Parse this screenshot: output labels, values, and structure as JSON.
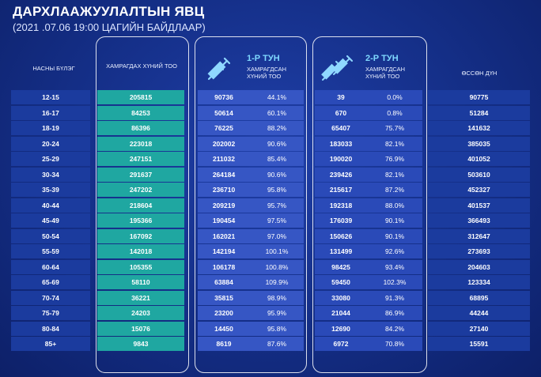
{
  "header": {
    "title": "ДАРХЛААЖУУЛАЛТЫН ЯВЦ",
    "subtitle": "(2021 .07.06   19:00 ЦАГИЙН БАЙДЛААР)"
  },
  "columns": {
    "age": "НАСНЫ БҮЛЭГ",
    "total": "ХАМРАГДАХ ХҮНИЙ ТОО",
    "dose1_title": "1-Р ТУН",
    "dose1_sub": "ХАМРАГДСАН ХҮНИЙ ТОО",
    "dose2_title": "2-Р ТУН",
    "dose2_sub": "ХАМРАГДСАН ХҮНИЙ ТОО",
    "growth": "ӨССӨН ДҮН"
  },
  "rows": [
    {
      "age": "12-15",
      "total": "205815",
      "d1": "90736",
      "d1p": "44.1%",
      "d2": "39",
      "d2p": "0.0%",
      "growth": "90775"
    },
    {
      "age": "16-17",
      "total": "84253",
      "d1": "50614",
      "d1p": "60.1%",
      "d2": "670",
      "d2p": "0.8%",
      "growth": "51284"
    },
    {
      "age": "18-19",
      "total": "86396",
      "d1": "76225",
      "d1p": "88.2%",
      "d2": "65407",
      "d2p": "75.7%",
      "growth": "141632"
    },
    {
      "age": "20-24",
      "total": "223018",
      "d1": "202002",
      "d1p": "90.6%",
      "d2": "183033",
      "d2p": "82.1%",
      "growth": "385035"
    },
    {
      "age": "25-29",
      "total": "247151",
      "d1": "211032",
      "d1p": "85.4%",
      "d2": "190020",
      "d2p": "76.9%",
      "growth": "401052"
    },
    {
      "age": "30-34",
      "total": "291637",
      "d1": "264184",
      "d1p": "90.6%",
      "d2": "239426",
      "d2p": "82.1%",
      "growth": "503610"
    },
    {
      "age": "35-39",
      "total": "247202",
      "d1": "236710",
      "d1p": "95.8%",
      "d2": "215617",
      "d2p": "87.2%",
      "growth": "452327"
    },
    {
      "age": "40-44",
      "total": "218604",
      "d1": "209219",
      "d1p": "95.7%",
      "d2": "192318",
      "d2p": "88.0%",
      "growth": "401537"
    },
    {
      "age": "45-49",
      "total": "195366",
      "d1": "190454",
      "d1p": "97.5%",
      "d2": "176039",
      "d2p": "90.1%",
      "growth": "366493"
    },
    {
      "age": "50-54",
      "total": "167092",
      "d1": "162021",
      "d1p": "97.0%",
      "d2": "150626",
      "d2p": "90.1%",
      "growth": "312647"
    },
    {
      "age": "55-59",
      "total": "142018",
      "d1": "142194",
      "d1p": "100.1%",
      "d2": "131499",
      "d2p": "92.6%",
      "growth": "273693"
    },
    {
      "age": "60-64",
      "total": "105355",
      "d1": "106178",
      "d1p": "100.8%",
      "d2": "98425",
      "d2p": "93.4%",
      "growth": "204603"
    },
    {
      "age": "65-69",
      "total": "58110",
      "d1": "63884",
      "d1p": "109.9%",
      "d2": "59450",
      "d2p": "102.3%",
      "growth": "123334"
    },
    {
      "age": "70-74",
      "total": "36221",
      "d1": "35815",
      "d1p": "98.9%",
      "d2": "33080",
      "d2p": "91.3%",
      "growth": "68895"
    },
    {
      "age": "75-79",
      "total": "24203",
      "d1": "23200",
      "d1p": "95.9%",
      "d2": "21044",
      "d2p": "86.9%",
      "growth": "44244"
    },
    {
      "age": "80-84",
      "total": "15076",
      "d1": "14450",
      "d1p": "95.8%",
      "d2": "12690",
      "d2p": "84.2%",
      "growth": "27140"
    },
    {
      "age": "85+",
      "total": "9843",
      "d1": "8619",
      "d1p": "87.6%",
      "d2": "6972",
      "d2p": "70.8%",
      "growth": "15591"
    }
  ],
  "icons": {
    "dose1": "syringe-icon",
    "dose2": "two-syringes-icon"
  },
  "colors": {
    "background": "#142e86",
    "total_cell": "#1fa7a1",
    "dose_title": "#7fd9ff"
  }
}
